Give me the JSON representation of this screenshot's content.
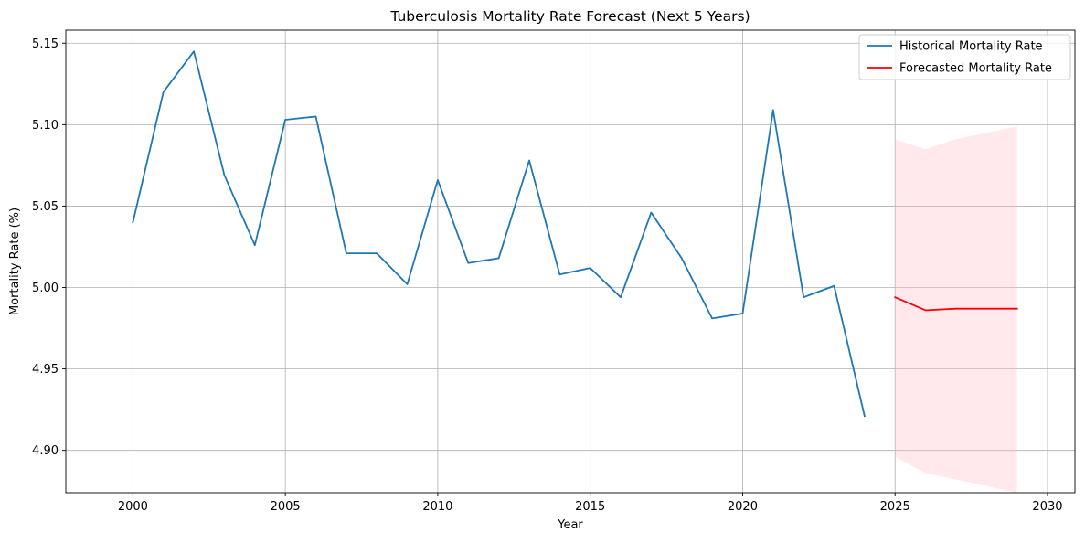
{
  "chart_data": {
    "type": "line",
    "title": "Tuberculosis Mortality Rate Forecast (Next 5 Years)",
    "xlabel": "Year",
    "ylabel": "Mortality Rate (%)",
    "xlim": [
      1997.8,
      2030.9
    ],
    "ylim": [
      4.874,
      5.158
    ],
    "x_ticks": [
      2000,
      2005,
      2010,
      2015,
      2020,
      2025,
      2030
    ],
    "x_tick_labels": [
      "2000",
      "2005",
      "2010",
      "2015",
      "2020",
      "2025",
      "2030"
    ],
    "y_ticks": [
      4.9,
      4.95,
      5.0,
      5.05,
      5.1,
      5.15
    ],
    "y_tick_labels": [
      "4.90",
      "4.95",
      "5.00",
      "5.05",
      "5.10",
      "5.15"
    ],
    "grid": true,
    "legend_position": "top-right",
    "series": [
      {
        "name": "Historical Mortality Rate",
        "color": "#1f77b4",
        "x": [
          2000,
          2001,
          2002,
          2003,
          2004,
          2005,
          2006,
          2007,
          2008,
          2009,
          2010,
          2011,
          2012,
          2013,
          2014,
          2015,
          2016,
          2017,
          2018,
          2019,
          2020,
          2021,
          2022,
          2023,
          2024
        ],
        "y": [
          5.04,
          5.12,
          5.145,
          5.069,
          5.026,
          5.103,
          5.105,
          5.021,
          5.021,
          5.002,
          5.066,
          5.015,
          5.018,
          5.078,
          5.008,
          5.012,
          4.994,
          5.046,
          5.018,
          4.981,
          4.984,
          5.109,
          4.994,
          5.001,
          4.921
        ]
      },
      {
        "name": "Forecasted Mortality Rate",
        "color": "#ff0000",
        "x": [
          2025,
          2026,
          2027,
          2028,
          2029
        ],
        "y": [
          4.994,
          4.986,
          4.987,
          4.987,
          4.987
        ]
      }
    ],
    "confidence_band": {
      "color": "#ffc0cb",
      "opacity": 0.35,
      "x": [
        2025,
        2026,
        2027,
        2028,
        2029
      ],
      "lower": [
        4.896,
        4.886,
        4.882,
        4.878,
        4.874
      ],
      "upper": [
        5.091,
        5.085,
        5.091,
        5.095,
        5.099
      ]
    }
  }
}
